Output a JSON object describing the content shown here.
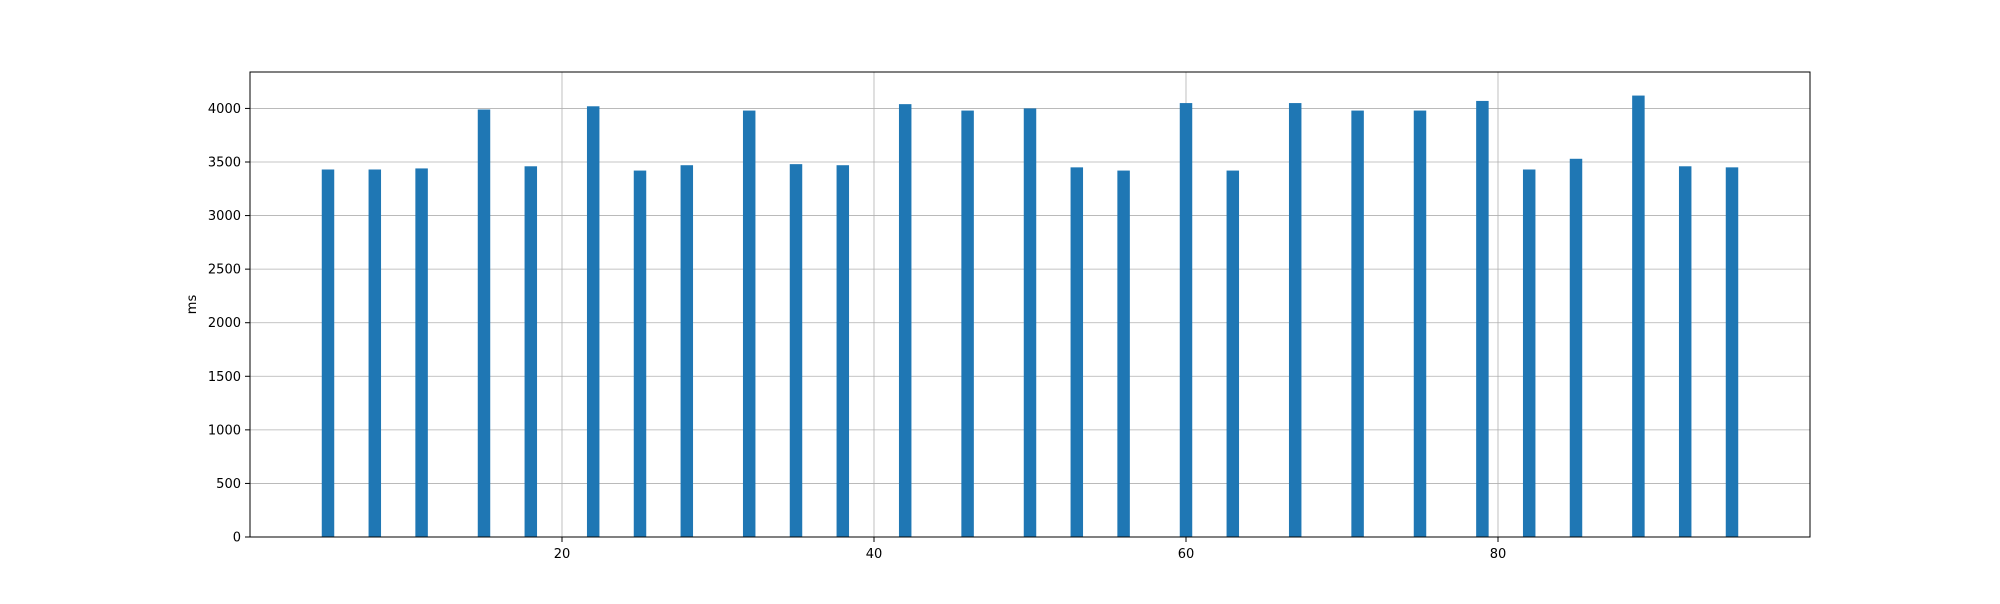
{
  "chart_data": {
    "type": "bar",
    "title": "",
    "xlabel": "",
    "ylabel": "ms",
    "xlim": [
      0,
      100
    ],
    "ylim": [
      0,
      4340
    ],
    "xticks": [
      20,
      40,
      60,
      80
    ],
    "yticks": [
      0,
      500,
      1000,
      1500,
      2000,
      2500,
      3000,
      3500,
      4000
    ],
    "grid": true,
    "bar_width": 0.8,
    "color": "#1f77b4",
    "x": [
      5,
      8,
      11,
      15,
      18,
      22,
      25,
      28,
      32,
      35,
      38,
      42,
      46,
      50,
      53,
      56,
      60,
      63,
      67,
      71,
      75,
      79,
      82,
      85,
      89,
      92,
      95
    ],
    "values": [
      3430,
      3430,
      3440,
      3990,
      3460,
      4020,
      3420,
      3470,
      3980,
      3480,
      3470,
      4040,
      3980,
      4000,
      3450,
      3420,
      4050,
      3420,
      4050,
      3980,
      3980,
      4070,
      3430,
      3530,
      4120,
      3460,
      3450
    ]
  }
}
